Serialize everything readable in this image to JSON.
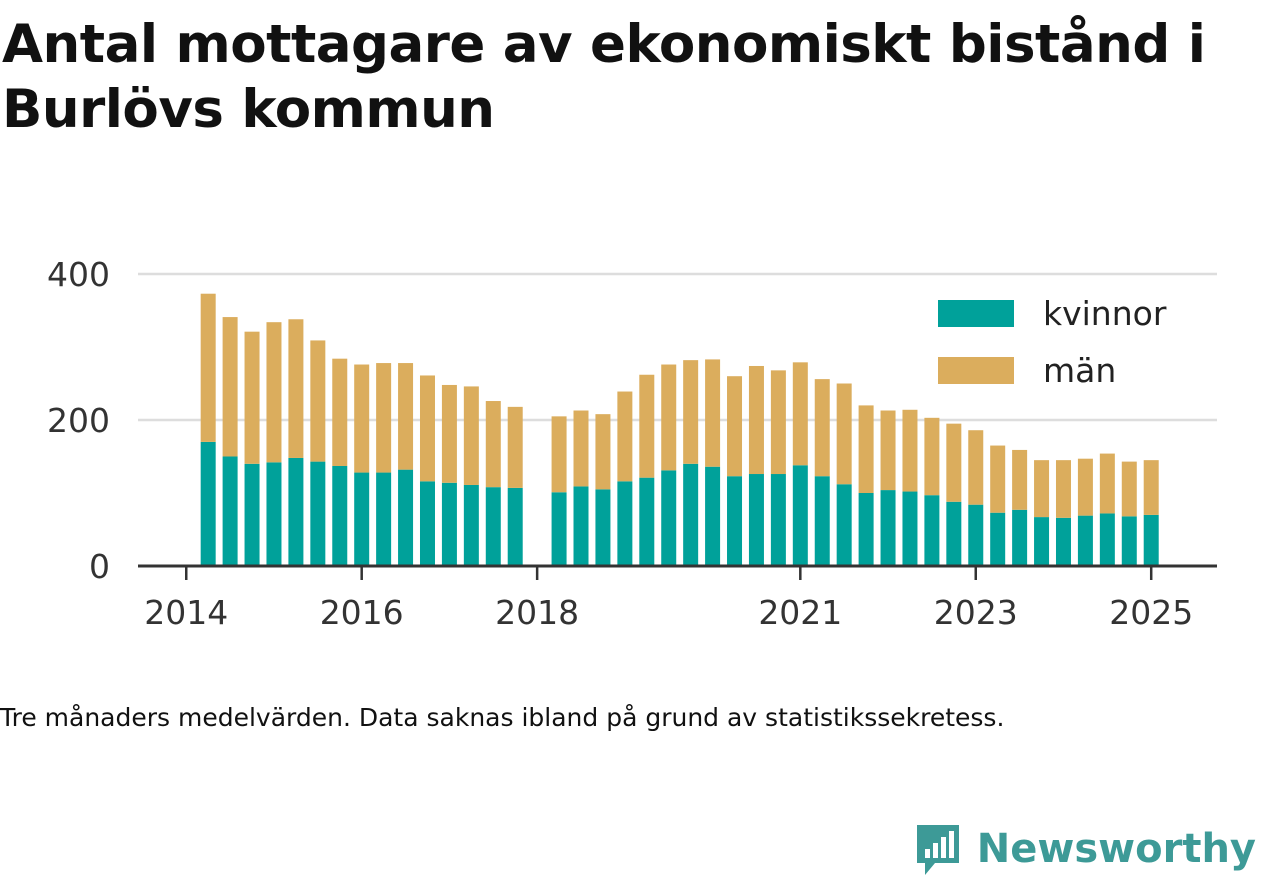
{
  "title": "Antal mottagare av ekonomiskt bistånd i Burlövs kommun",
  "caption": "Tre månaders medelvärden. Data saknas ibland på grund av statistikssekretess.",
  "brand": {
    "name": "Newsworthy",
    "icon": "bar-chart-speech-bubble-icon"
  },
  "colors": {
    "kvinnor": "#00a19a",
    "man": "#dbad5d",
    "grid": "#dddddd",
    "axis": "#333333"
  },
  "chart_data": {
    "type": "bar",
    "stacked": true,
    "ylim": [
      0,
      400
    ],
    "yticks": [
      0,
      200,
      400
    ],
    "xtick_labels": [
      {
        "label": "2014",
        "t": 2014.0
      },
      {
        "label": "2016",
        "t": 2016.0
      },
      {
        "label": "2018",
        "t": 2018.0
      },
      {
        "label": "2021",
        "t": 2021.0
      },
      {
        "label": "2023",
        "t": 2023.0
      },
      {
        "label": "2025",
        "t": 2025.0
      }
    ],
    "xlim": [
      2013.45,
      2025.75
    ],
    "grid": true,
    "legend": {
      "placement": "top-right",
      "entries": [
        "kvinnor",
        "män"
      ]
    },
    "x": [
      2014.25,
      2014.5,
      2014.75,
      2015.0,
      2015.25,
      2015.5,
      2015.75,
      2016.0,
      2016.25,
      2016.5,
      2016.75,
      2017.0,
      2017.25,
      2017.5,
      2017.75,
      2018.25,
      2018.5,
      2018.75,
      2019.0,
      2019.25,
      2019.5,
      2019.75,
      2020.0,
      2020.25,
      2020.5,
      2020.75,
      2021.0,
      2021.25,
      2021.5,
      2021.75,
      2022.0,
      2022.25,
      2022.5,
      2022.75,
      2023.0,
      2023.25,
      2023.5,
      2023.75,
      2024.0,
      2024.25,
      2024.5,
      2024.75,
      2025.0
    ],
    "series": [
      {
        "name": "kvinnor",
        "values": [
          170,
          150,
          140,
          142,
          148,
          143,
          137,
          128,
          128,
          132,
          116,
          114,
          111,
          108,
          107,
          101,
          109,
          105,
          116,
          121,
          131,
          140,
          136,
          123,
          126,
          126,
          138,
          123,
          112,
          100,
          104,
          102,
          97,
          88,
          84,
          73,
          77,
          67,
          66,
          69,
          72,
          68,
          70
        ]
      },
      {
        "name": "män",
        "values": [
          203,
          191,
          181,
          192,
          190,
          166,
          147,
          148,
          150,
          146,
          145,
          134,
          135,
          118,
          111,
          104,
          104,
          103,
          123,
          141,
          145,
          142,
          147,
          137,
          148,
          142,
          141,
          133,
          138,
          120,
          109,
          112,
          106,
          107,
          102,
          92,
          82,
          78,
          79,
          78,
          82,
          75,
          75
        ]
      }
    ]
  }
}
